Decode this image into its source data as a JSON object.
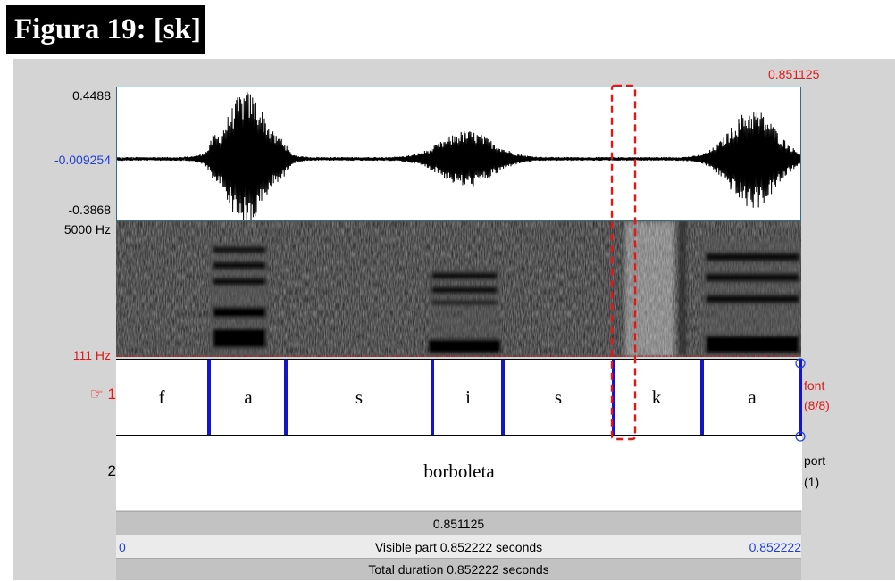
{
  "figure_label": "Figura 19: [sk]",
  "cursor_time": "0.851125",
  "waveform": {
    "max": "0.4488",
    "mid": "-0.009254",
    "min": "-0.3868"
  },
  "spectrogram": {
    "top": "5000 Hz",
    "bottom": "111 Hz"
  },
  "tier1": {
    "marker": "☞ 1",
    "segments": [
      "f",
      "a",
      "s",
      "i",
      "s",
      "k",
      "a"
    ],
    "side_label": "font",
    "side_count": "(8/8)"
  },
  "tier2": {
    "number": "2",
    "text": "borboleta",
    "side_label": "port",
    "side_count": "(1)"
  },
  "bottom": {
    "selection": "0.851125",
    "start": "0",
    "visible": "Visible part 0.852222 seconds",
    "end": "0.852222",
    "total": "Total duration 0.852222 seconds"
  },
  "colors": {
    "cursor": "#e21818",
    "boundary": "#1414c8",
    "axis_blue": "#1f3fd6"
  }
}
